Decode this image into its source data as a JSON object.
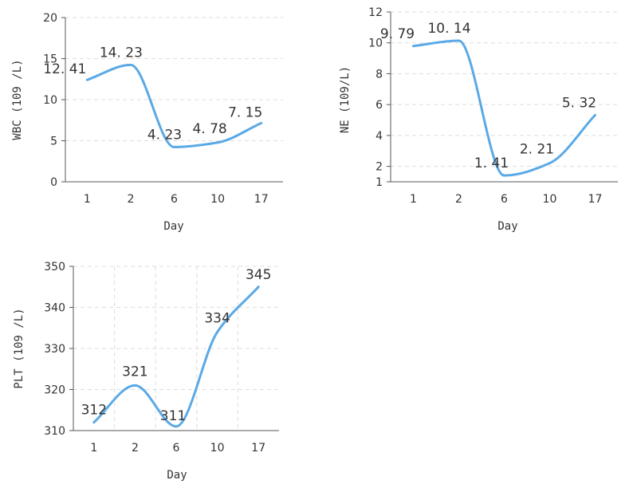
{
  "chart_data": [
    {
      "type": "line",
      "categories": [
        "1",
        "2",
        "6",
        "10",
        "17"
      ],
      "series": [
        {
          "values": [
            12.41,
            14.23,
            4.23,
            4.78,
            7.15
          ]
        }
      ],
      "data_labels": [
        "12. 41",
        "14. 23",
        "4. 23",
        "4. 78",
        "7. 15"
      ],
      "xlabel": "Day",
      "ylabel": "WBC (109 /L)",
      "ylim": [
        0,
        20
      ],
      "yticks": [
        0,
        5,
        10,
        15,
        20
      ],
      "ytick_labels": [
        "0",
        "5",
        "10",
        "15",
        "20"
      ],
      "grid": "horizontal-dashed",
      "line_color": "#5aa9e6"
    },
    {
      "type": "line",
      "categories": [
        "1",
        "2",
        "6",
        "10",
        "17"
      ],
      "series": [
        {
          "values": [
            9.79,
            10.14,
            1.41,
            2.21,
            5.32
          ]
        }
      ],
      "data_labels": [
        "9. 79",
        "10. 14",
        "1. 41",
        "2. 21",
        "5. 32"
      ],
      "xlabel": "Day",
      "ylabel": "NE (109/L)",
      "ylim": [
        1,
        12
      ],
      "yticks": [
        1,
        2,
        4,
        6,
        8,
        10,
        12
      ],
      "ytick_labels": [
        "1",
        "2",
        "4",
        "6",
        "8",
        "10",
        "12"
      ],
      "grid": "horizontal-dashed",
      "line_color": "#5aa9e6"
    },
    {
      "type": "line",
      "categories": [
        "1",
        "2",
        "6",
        "10",
        "17"
      ],
      "series": [
        {
          "values": [
            312,
            321,
            311,
            334,
            345
          ]
        }
      ],
      "data_labels": [
        "312",
        "321",
        "311",
        "334",
        "345"
      ],
      "xlabel": "Day",
      "ylabel": "PLT (109 /L)",
      "ylim": [
        310,
        350
      ],
      "yticks": [
        310,
        320,
        330,
        340,
        350
      ],
      "ytick_labels": [
        "310",
        "320",
        "330",
        "340",
        "350"
      ],
      "grid": "both-dashed",
      "line_color": "#5aa9e6"
    }
  ]
}
